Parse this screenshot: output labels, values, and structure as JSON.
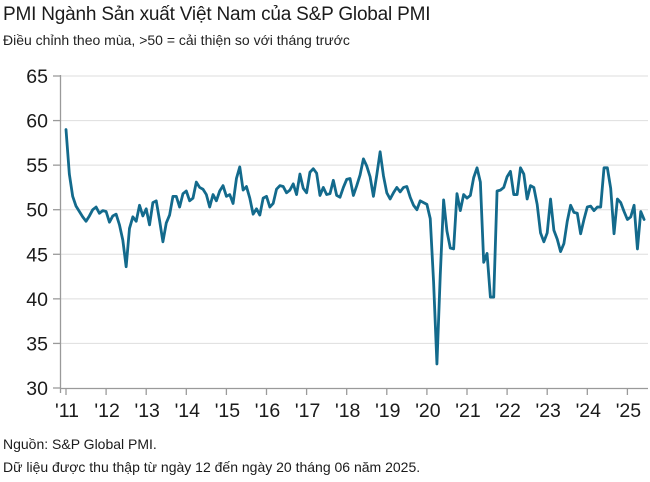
{
  "header": {
    "title": "PMI Ngành Sản xuất Việt Nam của S&P Global PMI",
    "subtitle": "Điều chỉnh theo mùa, >50 = cải thiện so với tháng trước"
  },
  "footer": {
    "source": "Nguồn: S&P Global PMI.",
    "note": "Dữ liệu được thu thập từ ngày 12 đến ngày 20 tháng 06 năm 2025."
  },
  "chart_data": {
    "type": "line",
    "title": "PMI Ngành Sản xuất Việt Nam của S&P Global PMI",
    "subtitle": "Điều chỉnh theo mùa, >50 = cải thiện so với tháng trước",
    "frequency": "monthly",
    "x_start": "2011-01",
    "x_end": "2025-06",
    "xticks": [
      "'11",
      "'12",
      "'13",
      "'14",
      "'15",
      "'16",
      "'17",
      "'18",
      "'19",
      "'20",
      "'21",
      "'22",
      "'23",
      "'24",
      "'25"
    ],
    "yticks": [
      65,
      60,
      55,
      50,
      45,
      40,
      35,
      30
    ],
    "ylim": [
      30,
      65
    ],
    "grid": true,
    "legend": false,
    "line_color": "#136a8c",
    "axis_color": "#9a9a9a",
    "grid_color": "#dedede",
    "series": [
      {
        "name": "PMI",
        "values": [
          59.0,
          54.0,
          51.5,
          50.4,
          49.8,
          49.2,
          48.7,
          49.3,
          50.0,
          50.3,
          49.6,
          49.9,
          49.8,
          48.6,
          49.3,
          49.5,
          48.3,
          46.6,
          43.6,
          47.9,
          49.2,
          48.7,
          50.5,
          49.3,
          50.1,
          48.3,
          50.8,
          51.0,
          48.8,
          46.4,
          48.5,
          49.4,
          51.5,
          51.5,
          50.3,
          51.8,
          52.1,
          51.0,
          51.3,
          53.1,
          52.5,
          52.3,
          51.7,
          50.3,
          51.7,
          51.0,
          52.1,
          52.7,
          51.5,
          51.7,
          50.7,
          53.5,
          54.8,
          52.2,
          52.6,
          51.3,
          49.5,
          50.1,
          49.4,
          51.3,
          51.5,
          50.3,
          50.7,
          52.3,
          52.7,
          52.6,
          51.9,
          52.2,
          52.9,
          51.7,
          54.0,
          52.4,
          51.9,
          54.2,
          54.6,
          54.1,
          51.6,
          52.5,
          51.7,
          51.8,
          53.3,
          51.6,
          51.4,
          52.5,
          53.4,
          53.5,
          51.6,
          52.7,
          53.9,
          55.7,
          54.9,
          53.7,
          51.5,
          53.9,
          56.5,
          53.8,
          51.9,
          51.2,
          51.9,
          52.5,
          52.0,
          52.5,
          52.6,
          51.4,
          50.5,
          50.0,
          51.0,
          50.8,
          50.6,
          49.0,
          41.9,
          32.7,
          42.7,
          51.1,
          47.6,
          45.7,
          45.6,
          51.8,
          49.9,
          51.7,
          51.3,
          51.6,
          53.6,
          54.7,
          53.1,
          44.1,
          45.1,
          40.2,
          40.2,
          52.1,
          52.2,
          52.5,
          53.7,
          54.3,
          51.7,
          51.7,
          54.7,
          54.0,
          51.2,
          52.7,
          52.5,
          50.6,
          47.4,
          46.4,
          47.4,
          51.2,
          47.7,
          46.7,
          45.3,
          46.2,
          48.7,
          50.5,
          49.7,
          49.6,
          47.3,
          48.9,
          50.3,
          50.4,
          49.9,
          50.3,
          50.3,
          54.7,
          54.7,
          52.4,
          47.3,
          51.2,
          50.8,
          49.8,
          48.9,
          49.2,
          50.5,
          45.6,
          49.8,
          48.9
        ]
      }
    ]
  }
}
